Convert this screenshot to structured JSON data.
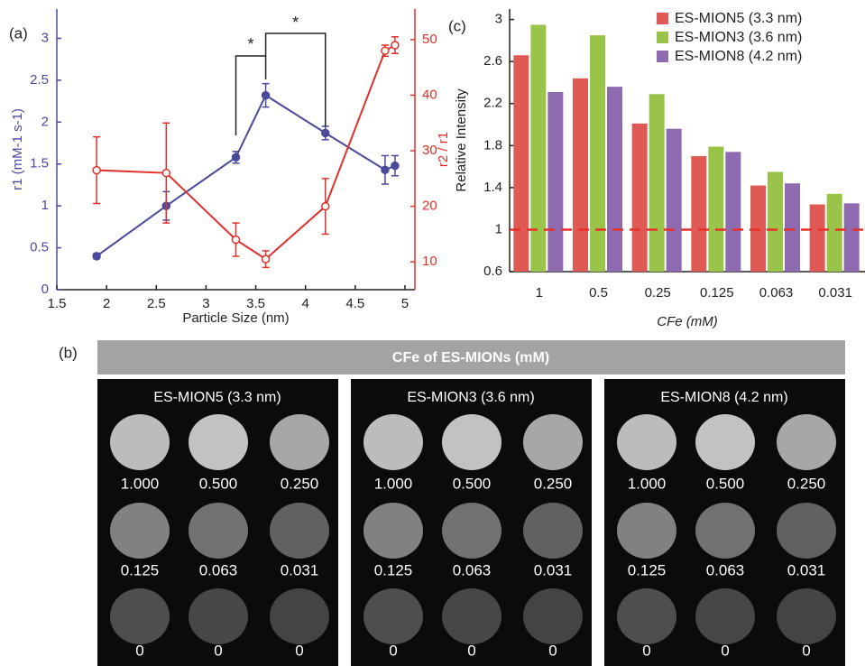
{
  "chart_data": [
    {
      "type": "line",
      "panel_label": "(a)",
      "xlabel": "Particle Size (nm)",
      "ylabel": "r1 (mM-1 s-1)",
      "y2label": "r2 / r1",
      "xlim": [
        1.5,
        5.1
      ],
      "xticks": [
        1.5,
        2,
        2.5,
        3,
        3.5,
        4,
        4.5,
        5
      ],
      "ylim": [
        0,
        3.35
      ],
      "yticks": [
        0,
        0.5,
        1,
        1.5,
        2,
        2.5,
        3
      ],
      "y2lim": [
        5,
        55.5
      ],
      "y2ticks": [
        10,
        20,
        30,
        40,
        50
      ],
      "series": [
        {
          "color": "#4b4a9a",
          "x": [
            1.9,
            2.6,
            3.3,
            3.6,
            4.2,
            4.8,
            4.9
          ],
          "values": [
            0.4,
            1.0,
            1.58,
            2.32,
            1.87,
            1.43,
            1.48
          ],
          "errors": [
            0.03,
            0.17,
            0.07,
            0.14,
            0.08,
            0.17,
            0.12
          ]
        },
        {
          "color": "#e0302a",
          "axis": "y2",
          "x": [
            1.9,
            2.6,
            3.3,
            3.6,
            4.2,
            4.8,
            4.9
          ],
          "values": [
            26.5,
            26,
            14,
            10.5,
            20,
            48,
            49
          ],
          "errors": [
            6,
            9,
            3,
            1.5,
            5,
            1,
            1.5
          ]
        }
      ],
      "annotations": [
        "*",
        "*"
      ]
    },
    {
      "type": "bar",
      "panel_label": "(c)",
      "xlabel": "CFe (mM)",
      "ylabel": "Relative Intensity",
      "categories": [
        "1",
        "0.5",
        "0.25",
        "0.125",
        "0.063",
        "0.031"
      ],
      "ylim": [
        0.6,
        3.1
      ],
      "yticks": [
        0.6,
        1,
        1.4,
        1.8,
        2.2,
        2.6,
        3
      ],
      "reference_line": 1,
      "legend": "upper right",
      "series": [
        {
          "name": "ES-MION5 (3.3 nm)",
          "color": "#e05a55",
          "values": [
            2.66,
            2.44,
            2.01,
            1.7,
            1.42,
            1.24
          ]
        },
        {
          "name": "ES-MION3 (3.6 nm)",
          "color": "#9ac34a",
          "values": [
            2.95,
            2.85,
            2.29,
            1.79,
            1.55,
            1.34
          ]
        },
        {
          "name": "ES-MION8 (4.2 nm)",
          "color": "#8e6bb0",
          "values": [
            2.31,
            2.36,
            1.96,
            1.74,
            1.44,
            1.25
          ]
        }
      ]
    }
  ],
  "mri_panel": {
    "panel_label": "(b)",
    "header": "CFe of ES-MIONs (mM)",
    "panels": [
      {
        "title": "ES-MION5 (3.3 nm)",
        "labels": [
          [
            "1.000",
            "0.500",
            "0.250"
          ],
          [
            "0.125",
            "0.063",
            "0.031"
          ],
          [
            "0",
            "0",
            "0"
          ]
        ]
      },
      {
        "title": "ES-MION3 (3.6 nm)",
        "labels": [
          [
            "1.000",
            "0.500",
            "0.250"
          ],
          [
            "0.125",
            "0.063",
            "0.031"
          ],
          [
            "0",
            "0",
            "0"
          ]
        ]
      },
      {
        "title": "ES-MION8 (4.2 nm)",
        "labels": [
          [
            "1.000",
            "0.500",
            "0.250"
          ],
          [
            "0.125",
            "0.063",
            "0.031"
          ],
          [
            "0",
            "0",
            "0"
          ]
        ]
      }
    ]
  }
}
